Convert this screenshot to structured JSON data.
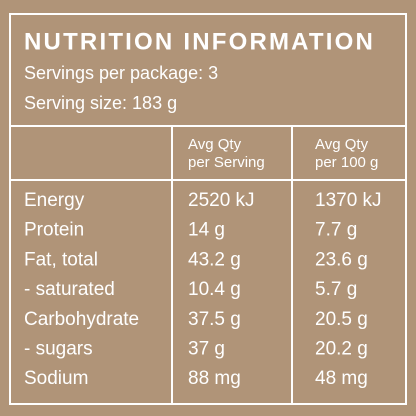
{
  "header": {
    "title": "NUTRITION INFORMATION",
    "servings_per_package": "Servings per package: 3",
    "serving_size": "Serving size: 183 g"
  },
  "table": {
    "columns": [
      [
        "Avg Qty",
        "per Serving"
      ],
      [
        "Avg Qty",
        "per 100 g"
      ]
    ],
    "rows": [
      [
        "Energy",
        "2520 kJ",
        "1370 kJ"
      ],
      [
        "Protein",
        "14 g",
        "7.7 g"
      ],
      [
        "Fat, total",
        "43.2 g",
        "23.6 g"
      ],
      [
        "- saturated",
        "10.4 g",
        "5.7 g"
      ],
      [
        "Carbohydrate",
        "37.5 g",
        "20.5 g"
      ],
      [
        "- sugars",
        "37 g",
        "20.2 g"
      ],
      [
        "Sodium",
        "88 mg",
        "48 mg"
      ]
    ]
  }
}
